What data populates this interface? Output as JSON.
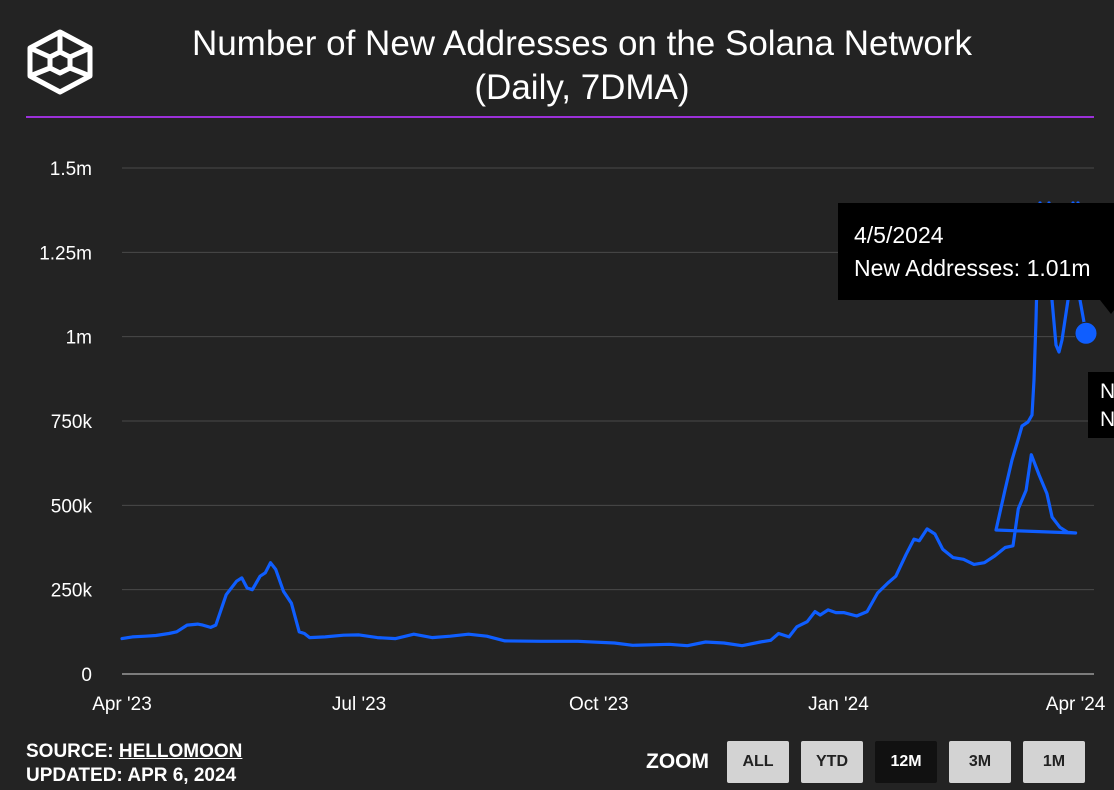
{
  "header": {
    "title_line1": "Number of New Addresses on the Solana Network",
    "title_line2": "(Daily, 7DMA)",
    "logo_icon": "block-cube-logo-icon"
  },
  "colors": {
    "line": "#0f5eff",
    "accent_rule": "#9b30d9",
    "background": "#232323"
  },
  "chart_data": {
    "type": "line",
    "title": "Number of New Addresses on the Solana Network (Daily, 7DMA)",
    "xlabel": "",
    "ylabel": "",
    "x_ticks": [
      "Apr '23",
      "Jul '23",
      "Oct '23",
      "Jan '24",
      "Apr '24"
    ],
    "y_ticks": [
      "0",
      "250k",
      "500k",
      "750k",
      "1m",
      "1.25m",
      "1.5m"
    ],
    "y_tick_values": [
      0,
      250000,
      500000,
      750000,
      1000000,
      1250000,
      1500000
    ],
    "ylim": [
      0,
      1500000
    ],
    "xlim": [
      "2023-04-01",
      "2024-04-05"
    ],
    "grid": true,
    "series": [
      {
        "name": "New Addresses",
        "points": [
          [
            "2023-04-01",
            105000
          ],
          [
            "2023-04-05",
            110000
          ],
          [
            "2023-04-10",
            112000
          ],
          [
            "2023-04-14",
            114000
          ],
          [
            "2023-04-19",
            120000
          ],
          [
            "2023-04-22",
            125000
          ],
          [
            "2023-04-26",
            145000
          ],
          [
            "2023-04-30",
            148000
          ],
          [
            "2023-05-02",
            145000
          ],
          [
            "2023-05-05",
            138000
          ],
          [
            "2023-05-07",
            145000
          ],
          [
            "2023-05-11",
            235000
          ],
          [
            "2023-05-15",
            275000
          ],
          [
            "2023-05-17",
            285000
          ],
          [
            "2023-05-19",
            255000
          ],
          [
            "2023-05-21",
            250000
          ],
          [
            "2023-05-24",
            290000
          ],
          [
            "2023-05-26",
            300000
          ],
          [
            "2023-05-28",
            330000
          ],
          [
            "2023-05-30",
            310000
          ],
          [
            "2023-06-02",
            245000
          ],
          [
            "2023-06-05",
            210000
          ],
          [
            "2023-06-08",
            125000
          ],
          [
            "2023-06-10",
            120000
          ],
          [
            "2023-06-12",
            108000
          ],
          [
            "2023-06-18",
            110000
          ],
          [
            "2023-06-25",
            115000
          ],
          [
            "2023-07-01",
            116000
          ],
          [
            "2023-07-08",
            108000
          ],
          [
            "2023-07-15",
            105000
          ],
          [
            "2023-07-22",
            118000
          ],
          [
            "2023-07-29",
            108000
          ],
          [
            "2023-08-05",
            112000
          ],
          [
            "2023-08-12",
            118000
          ],
          [
            "2023-08-19",
            112000
          ],
          [
            "2023-08-26",
            98000
          ],
          [
            "2023-09-09",
            97000
          ],
          [
            "2023-09-23",
            97000
          ],
          [
            "2023-10-07",
            92000
          ],
          [
            "2023-10-14",
            85000
          ],
          [
            "2023-10-28",
            88000
          ],
          [
            "2023-11-04",
            84000
          ],
          [
            "2023-11-11",
            95000
          ],
          [
            "2023-11-18",
            92000
          ],
          [
            "2023-11-25",
            84000
          ],
          [
            "2023-12-02",
            95000
          ],
          [
            "2023-12-06",
            100000
          ],
          [
            "2023-12-09",
            120000
          ],
          [
            "2023-12-13",
            110000
          ],
          [
            "2023-12-16",
            140000
          ],
          [
            "2023-12-20",
            155000
          ],
          [
            "2023-12-23",
            185000
          ],
          [
            "2023-12-25",
            175000
          ],
          [
            "2023-12-28",
            190000
          ],
          [
            "2023-12-31",
            182000
          ],
          [
            "2024-01-03",
            182000
          ],
          [
            "2024-01-08",
            172000
          ],
          [
            "2024-01-12",
            185000
          ],
          [
            "2024-01-16",
            240000
          ],
          [
            "2024-01-20",
            270000
          ],
          [
            "2024-01-23",
            290000
          ],
          [
            "2024-01-27",
            355000
          ],
          [
            "2024-01-30",
            400000
          ],
          [
            "2024-02-01",
            395000
          ],
          [
            "2024-02-04",
            430000
          ],
          [
            "2024-02-07",
            415000
          ],
          [
            "2024-02-10",
            370000
          ],
          [
            "2024-02-14",
            345000
          ],
          [
            "2024-02-18",
            340000
          ],
          [
            "2024-02-22",
            325000
          ],
          [
            "2024-02-26",
            330000
          ],
          [
            "2024-03-01",
            350000
          ],
          [
            "2024-03-05",
            375000
          ],
          [
            "2024-03-08",
            380000
          ],
          [
            "2024-03-10",
            490000
          ],
          [
            "2024-03-13",
            545000
          ],
          [
            "2024-03-15",
            650000
          ],
          [
            "2024-03-18",
            590000
          ],
          [
            "2024-03-21",
            535000
          ],
          [
            "2024-03-23",
            465000
          ],
          [
            "2024-03-26",
            435000
          ],
          [
            "2024-03-29",
            420000
          ],
          [
            "2024-04-01",
            418000
          ],
          [
            "2024-04-05",
            1010000
          ]
        ]
      }
    ],
    "tooltip": {
      "date": "4/5/2024",
      "label": "New Addresses: 1.01m"
    },
    "secondary_tooltip": {
      "line1": "N",
      "line2": "N"
    }
  },
  "footer": {
    "source_label": "SOURCE:",
    "source_name": "HELLOMOON",
    "updated_label": "UPDATED:",
    "updated_value": "APR 6, 2024"
  },
  "zoom": {
    "label": "ZOOM",
    "buttons": [
      "ALL",
      "YTD",
      "12M",
      "3M",
      "1M"
    ],
    "active": "12M"
  }
}
